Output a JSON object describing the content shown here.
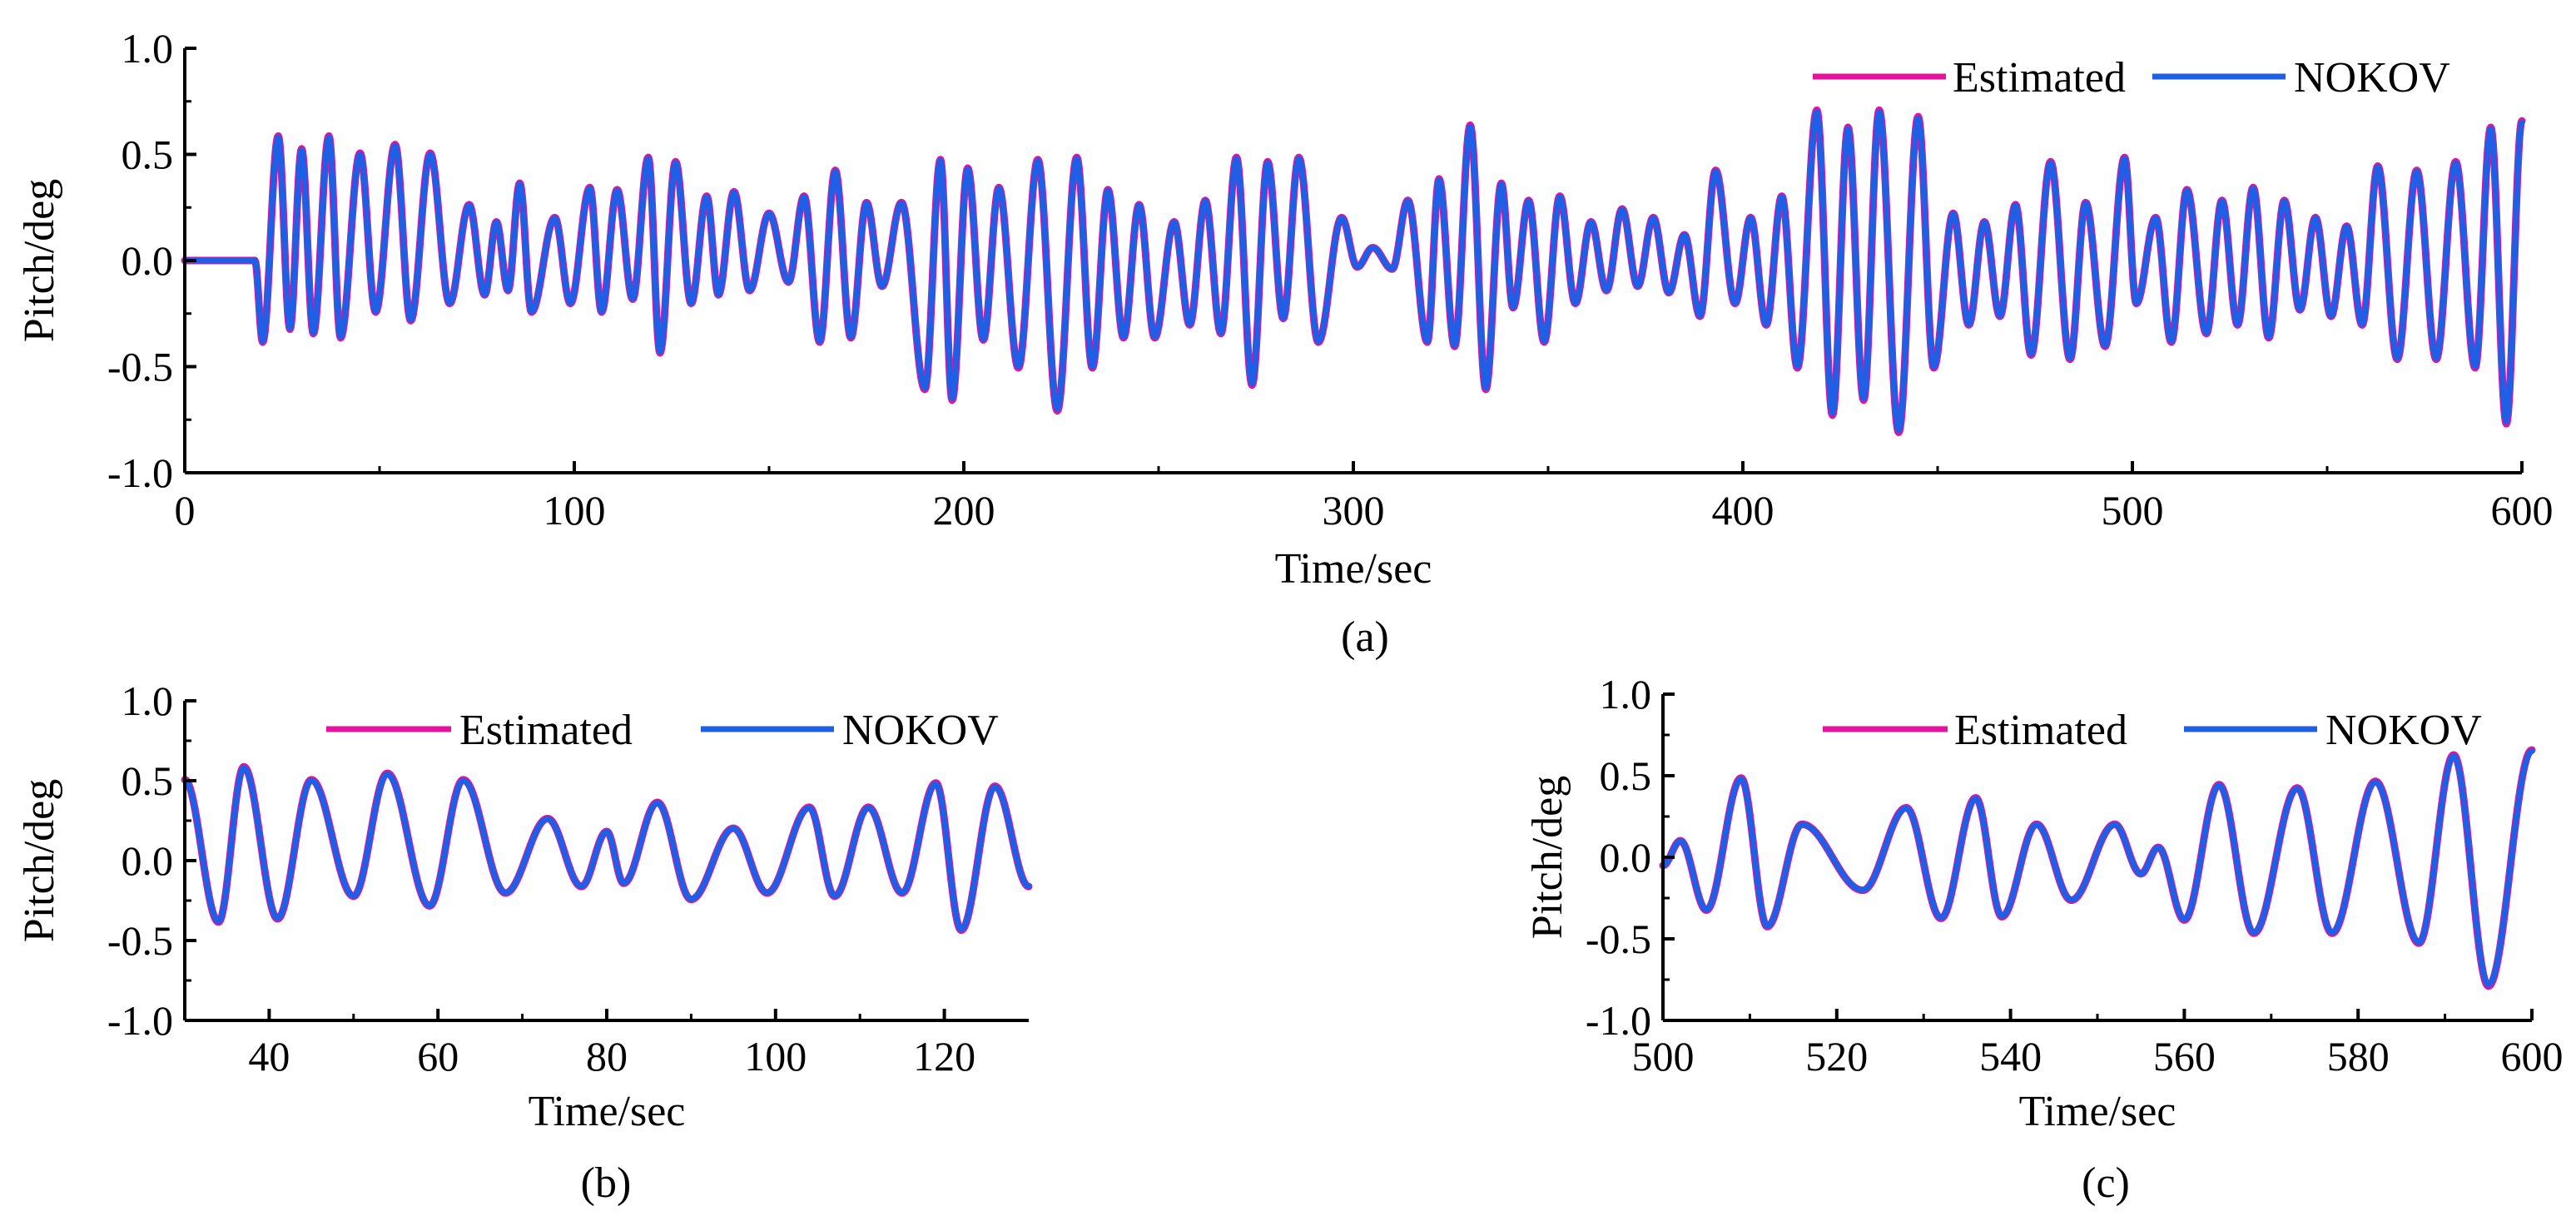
{
  "colors": {
    "estimated": "#e6129e",
    "nokov": "#1f5fe6",
    "axis": "#000000"
  },
  "chart_data": [
    {
      "type": "line",
      "id": "a",
      "caption": "(a)",
      "xlabel": "Time/sec",
      "ylabel": "Pitch/deg",
      "xlim": [
        0,
        600
      ],
      "ylim": [
        -1.0,
        1.0
      ],
      "xticks": [
        0,
        100,
        200,
        300,
        400,
        500,
        600
      ],
      "xtick_labels": [
        "0",
        "100",
        "200",
        "300",
        "400",
        "500",
        "600"
      ],
      "yticks": [
        1.0,
        0.5,
        0.0,
        -0.5,
        -1.0
      ],
      "ytick_labels": [
        "1.0",
        "0.5",
        "0.0",
        "-0.5",
        "-1.0"
      ],
      "legend": [
        "Estimated",
        "NOKOV"
      ],
      "legend_position": "top-right",
      "series": [
        {
          "name": "Estimated",
          "color": "#e6129e",
          "offset": 0.012
        },
        {
          "name": "NOKOV",
          "color": "#1f5fe6",
          "offset": 0.0
        }
      ],
      "extrema_time": [
        0,
        18,
        20,
        24,
        27,
        30,
        33,
        37,
        40,
        45,
        49,
        54,
        58,
        63,
        68,
        73,
        77,
        80,
        83,
        86,
        89,
        95,
        99,
        104,
        107,
        111,
        115,
        119,
        122,
        126,
        130,
        134,
        137,
        141,
        145,
        150,
        155,
        159,
        163,
        167,
        171,
        175,
        179,
        184,
        190,
        194,
        197,
        201,
        205,
        209,
        214,
        219,
        224,
        229,
        233,
        237,
        241,
        245,
        249,
        254,
        258,
        262,
        266,
        270,
        274,
        278,
        282,
        286,
        291,
        297,
        301,
        305,
        310,
        314,
        319,
        322,
        326,
        330,
        334,
        338,
        341,
        345,
        349,
        353,
        357,
        361,
        365,
        369,
        373,
        377,
        381,
        385,
        389,
        393,
        398,
        402,
        406,
        410,
        414,
        419,
        423,
        427,
        431,
        435,
        440,
        445,
        449,
        454,
        458,
        462,
        466,
        470,
        474,
        479,
        484,
        488,
        493,
        498,
        501,
        506,
        510,
        514,
        519,
        523,
        527,
        531,
        535,
        539,
        543,
        547,
        551,
        555,
        559,
        563,
        568,
        573,
        578,
        583,
        588,
        592,
        596,
        600
      ],
      "extrema_value": [
        0.0,
        0.0,
        -0.38,
        0.58,
        -0.32,
        0.52,
        -0.34,
        0.58,
        -0.36,
        0.5,
        -0.24,
        0.54,
        -0.28,
        0.5,
        -0.2,
        0.26,
        -0.16,
        0.18,
        -0.14,
        0.36,
        -0.24,
        0.2,
        -0.2,
        0.34,
        -0.24,
        0.33,
        -0.18,
        0.48,
        -0.43,
        0.46,
        -0.2,
        0.3,
        -0.16,
        0.32,
        -0.14,
        0.22,
        -0.1,
        0.3,
        -0.38,
        0.42,
        -0.36,
        0.27,
        -0.12,
        0.27,
        -0.6,
        0.47,
        -0.65,
        0.43,
        -0.37,
        0.34,
        -0.5,
        0.47,
        -0.7,
        0.48,
        -0.5,
        0.33,
        -0.36,
        0.26,
        -0.36,
        0.18,
        -0.3,
        0.28,
        -0.34,
        0.48,
        -0.58,
        0.46,
        -0.27,
        0.48,
        -0.38,
        0.2,
        -0.03,
        0.06,
        -0.04,
        0.28,
        -0.38,
        0.38,
        -0.4,
        0.63,
        -0.6,
        0.36,
        -0.22,
        0.28,
        -0.38,
        0.3,
        -0.2,
        0.18,
        -0.14,
        0.24,
        -0.12,
        0.2,
        -0.15,
        0.12,
        -0.26,
        0.42,
        -0.2,
        0.2,
        -0.3,
        0.3,
        -0.5,
        0.7,
        -0.72,
        0.62,
        -0.65,
        0.7,
        -0.8,
        0.67,
        -0.5,
        0.22,
        -0.3,
        0.18,
        -0.26,
        0.26,
        -0.44,
        0.46,
        -0.46,
        0.27,
        -0.4,
        0.48,
        -0.2,
        0.2,
        -0.38,
        0.33,
        -0.34,
        0.28,
        -0.3,
        0.34,
        -0.36,
        0.28,
        -0.23,
        0.2,
        -0.26,
        0.16,
        -0.3,
        0.44,
        -0.46,
        0.42,
        -0.46,
        0.46,
        -0.5,
        0.62,
        -0.76,
        0.65
      ]
    },
    {
      "type": "line",
      "id": "b",
      "caption": "(b)",
      "xlabel": "Time/sec",
      "ylabel": "Pitch/deg",
      "xlim": [
        30,
        130
      ],
      "ylim": [
        -1.0,
        1.0
      ],
      "xticks": [
        40,
        60,
        80,
        100,
        120
      ],
      "xtick_labels": [
        "40",
        "60",
        "80",
        "100",
        "120"
      ],
      "yticks": [
        1.0,
        0.5,
        0.0,
        -0.5,
        -1.0
      ],
      "ytick_labels": [
        "1.0",
        "0.5",
        "0.0",
        "-0.5",
        "-1.0"
      ],
      "legend": [
        "Estimated",
        "NOKOV"
      ],
      "legend_position": "top",
      "series": [
        {
          "name": "Estimated",
          "color": "#e6129e",
          "offset": 0.012
        },
        {
          "name": "NOKOV",
          "color": "#1f5fe6",
          "offset": 0.0
        }
      ],
      "extrema_time": [
        30,
        34,
        37,
        41,
        45,
        50,
        54,
        59,
        63,
        68,
        73,
        77,
        80,
        82,
        86,
        90,
        95,
        99,
        104,
        107,
        111,
        115,
        119,
        122,
        126,
        130
      ],
      "extrema_value": [
        0.5,
        -0.38,
        0.58,
        -0.36,
        0.5,
        -0.22,
        0.54,
        -0.28,
        0.5,
        -0.2,
        0.26,
        -0.16,
        0.18,
        -0.14,
        0.36,
        -0.24,
        0.2,
        -0.2,
        0.33,
        -0.22,
        0.33,
        -0.2,
        0.48,
        -0.43,
        0.46,
        -0.16
      ]
    },
    {
      "type": "line",
      "id": "c",
      "caption": "(c)",
      "xlabel": "Time/sec",
      "ylabel": "Pitch/deg",
      "xlim": [
        500,
        600
      ],
      "ylim": [
        -1.0,
        1.0
      ],
      "xticks": [
        500,
        520,
        540,
        560,
        580,
        600
      ],
      "xtick_labels": [
        "500",
        "520",
        "540",
        "560",
        "580",
        "600"
      ],
      "yticks": [
        1.0,
        0.5,
        0.0,
        -0.5,
        -1.0
      ],
      "ytick_labels": [
        "1.0",
        "0.5",
        "0.0",
        "-0.5",
        "-1.0"
      ],
      "legend": [
        "Estimated",
        "NOKOV"
      ],
      "legend_position": "top",
      "series": [
        {
          "name": "Estimated",
          "color": "#e6129e",
          "offset": 0.012
        },
        {
          "name": "NOKOV",
          "color": "#1f5fe6",
          "offset": 0.0
        }
      ],
      "extrema_time": [
        500,
        502,
        505,
        509,
        512,
        516,
        523,
        528,
        532,
        536,
        539,
        543,
        547,
        552,
        555,
        557,
        560,
        564,
        568,
        573,
        577,
        582,
        587,
        591,
        595,
        600
      ],
      "extrema_value": [
        -0.05,
        0.1,
        -0.32,
        0.48,
        -0.42,
        0.2,
        -0.2,
        0.3,
        -0.37,
        0.36,
        -0.36,
        0.2,
        -0.26,
        0.2,
        -0.1,
        0.06,
        -0.38,
        0.44,
        -0.46,
        0.42,
        -0.46,
        0.46,
        -0.52,
        0.62,
        -0.78,
        0.65
      ]
    }
  ]
}
